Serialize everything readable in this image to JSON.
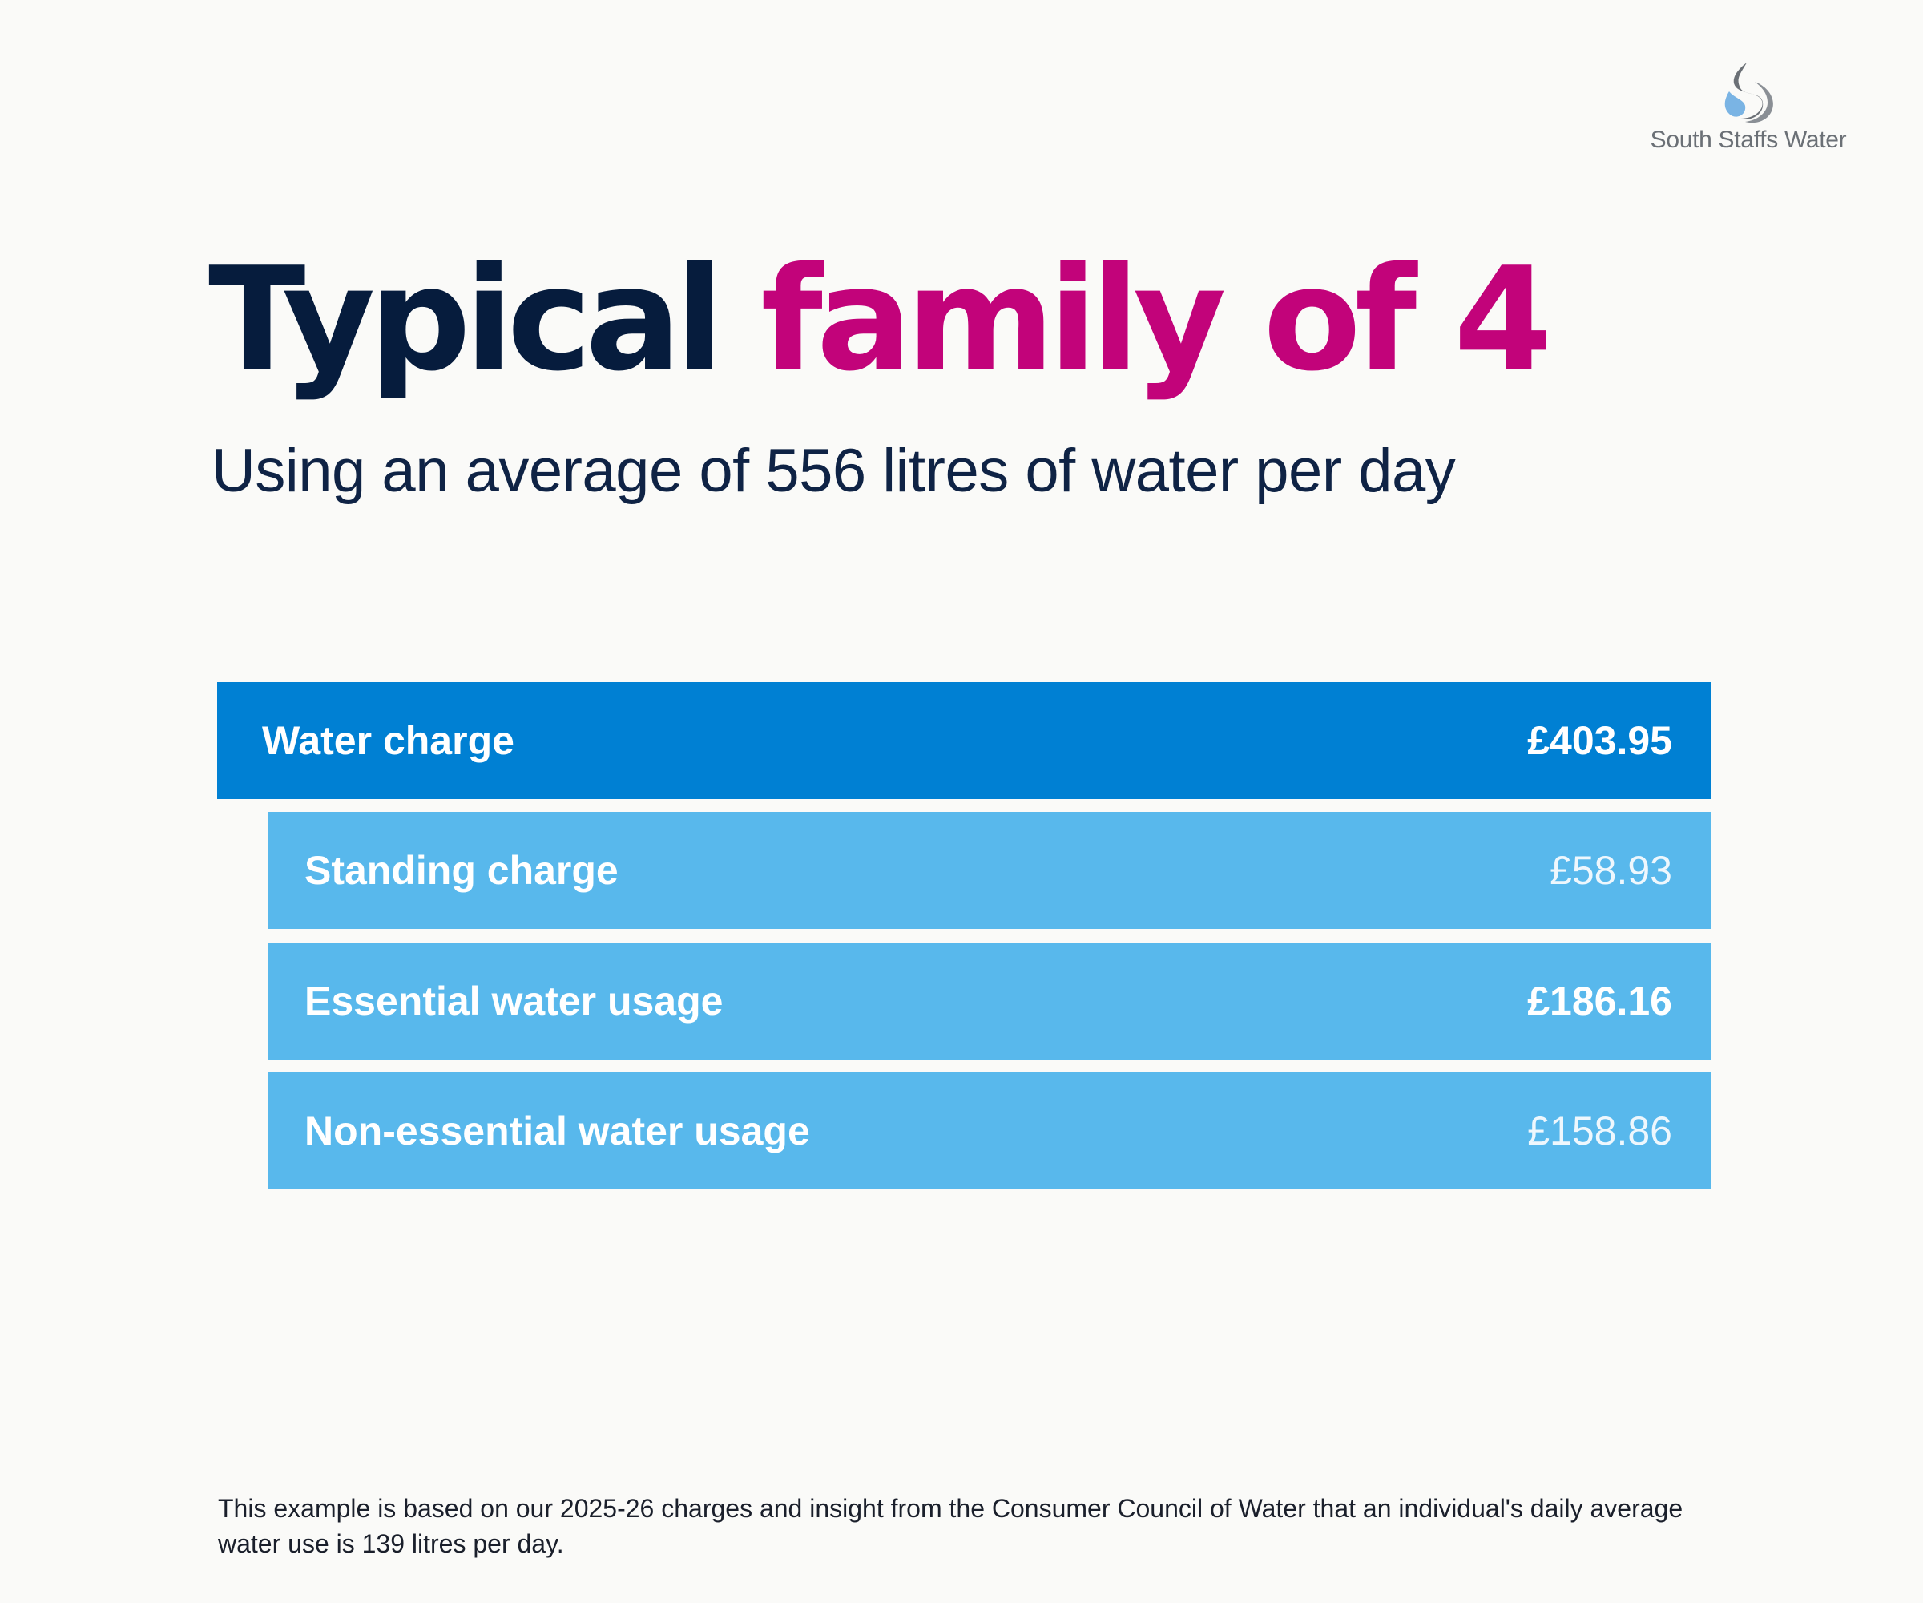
{
  "brand": {
    "name": "South Staffs Water",
    "icon": "water-drop-logo-icon",
    "colors": {
      "navy": "#061c3d",
      "magenta": "#c2037a",
      "primary_blue": "#0080d3",
      "light_blue": "#58b8ec",
      "logo_grey": "#6b7076",
      "logo_blue": "#7ab4e4"
    }
  },
  "heading": {
    "part1": "Typical",
    "part2": "family of 4",
    "subtitle": "Using an average of 556 litres of water per day"
  },
  "table": {
    "total": {
      "label": "Water charge",
      "value": "£403.95"
    },
    "items": [
      {
        "label": "Standing charge",
        "value": "£58.93"
      },
      {
        "label": "Essential water usage",
        "value": "£186.16"
      },
      {
        "label": "Non-essential water usage",
        "value": "£158.86"
      }
    ]
  },
  "footnote": "This example is based on our 2025-26 charges and insight from the Consumer Council of Water that an individual's daily average water use is 139 litres per day."
}
